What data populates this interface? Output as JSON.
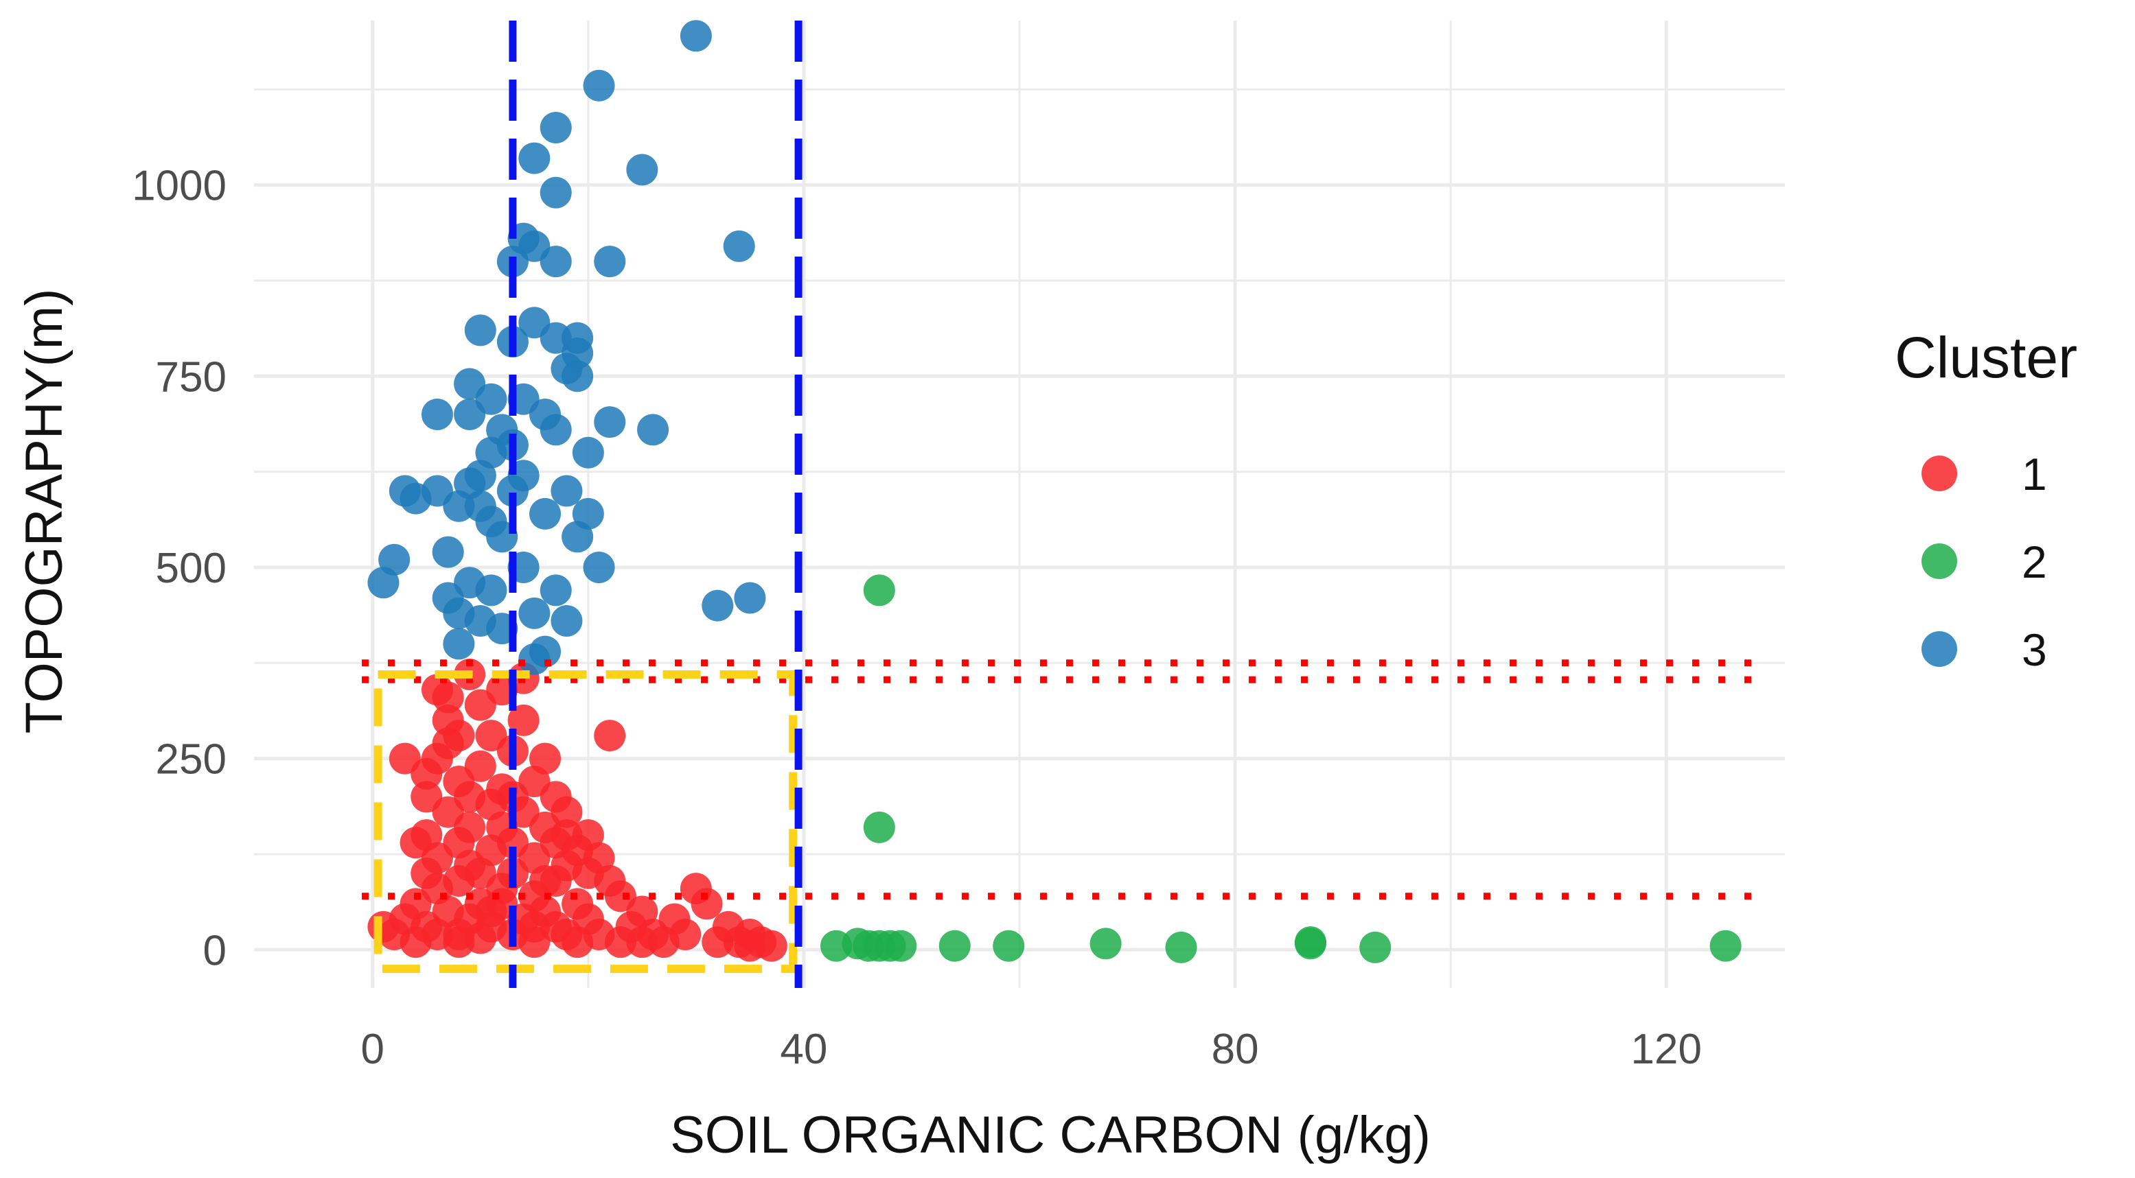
{
  "chart_data": {
    "type": "scatter",
    "xlabel": "SOIL ORGANIC CARBON (g/kg)",
    "ylabel": "TOPOGRAPHY(m)",
    "xlim": [
      -11,
      131
    ],
    "ylim": [
      -50,
      1215
    ],
    "x_ticks": [
      0,
      40,
      80,
      120
    ],
    "y_ticks": [
      0,
      250,
      500,
      750,
      1000
    ],
    "x_tick_labels": [
      "0",
      "40",
      "80",
      "120"
    ],
    "y_tick_labels": [
      "0",
      "250",
      "500",
      "750",
      "1000"
    ],
    "grid": true,
    "legend": {
      "title": "Cluster",
      "placement": "right"
    },
    "reference_lines": {
      "vertical_dashed_blue": [
        13,
        39.5
      ],
      "horizontal_dotted_red": [
        70,
        353,
        375
      ],
      "highlight_rect_yellow_dashed": {
        "x": [
          0.5,
          39
        ],
        "y": [
          -25,
          360
        ]
      }
    },
    "series": [
      {
        "name": "1",
        "color": "#f8262a",
        "points": [
          [
            1,
            30
          ],
          [
            2,
            20
          ],
          [
            3,
            40
          ],
          [
            4,
            10
          ],
          [
            4,
            60
          ],
          [
            5,
            30
          ],
          [
            5,
            100
          ],
          [
            5,
            150
          ],
          [
            5,
            200
          ],
          [
            6,
            250
          ],
          [
            6,
            20
          ],
          [
            6,
            80
          ],
          [
            6,
            120
          ],
          [
            7,
            300
          ],
          [
            7,
            330
          ],
          [
            7,
            50
          ],
          [
            7,
            180
          ],
          [
            8,
            10
          ],
          [
            8,
            90
          ],
          [
            8,
            140
          ],
          [
            8,
            220
          ],
          [
            8,
            280
          ],
          [
            9,
            40
          ],
          [
            9,
            110
          ],
          [
            9,
            160
          ],
          [
            9,
            200
          ],
          [
            10,
            60
          ],
          [
            10,
            240
          ],
          [
            10,
            320
          ],
          [
            10,
            15
          ],
          [
            11,
            130
          ],
          [
            11,
            30
          ],
          [
            11,
            190
          ],
          [
            11,
            280
          ],
          [
            12,
            80
          ],
          [
            12,
            160
          ],
          [
            12,
            210
          ],
          [
            12,
            340
          ],
          [
            13,
            20
          ],
          [
            13,
            100
          ],
          [
            13,
            140
          ],
          [
            13,
            260
          ],
          [
            14,
            40
          ],
          [
            14,
            180
          ],
          [
            14,
            300
          ],
          [
            15,
            10
          ],
          [
            15,
            70
          ],
          [
            15,
            120
          ],
          [
            15,
            220
          ],
          [
            16,
            50
          ],
          [
            16,
            160
          ],
          [
            16,
            250
          ],
          [
            17,
            90
          ],
          [
            17,
            30
          ],
          [
            17,
            200
          ],
          [
            18,
            20
          ],
          [
            18,
            110
          ],
          [
            18,
            150
          ],
          [
            18,
            180
          ],
          [
            19,
            60
          ],
          [
            19,
            10
          ],
          [
            20,
            40
          ],
          [
            20,
            150
          ],
          [
            21,
            120
          ],
          [
            21,
            20
          ],
          [
            22,
            280
          ],
          [
            22,
            90
          ],
          [
            23,
            10
          ],
          [
            23,
            70
          ],
          [
            24,
            30
          ],
          [
            25,
            50
          ],
          [
            25,
            10
          ],
          [
            26,
            20
          ],
          [
            27,
            10
          ],
          [
            28,
            40
          ],
          [
            29,
            20
          ],
          [
            30,
            80
          ],
          [
            31,
            60
          ],
          [
            32,
            10
          ],
          [
            33,
            30
          ],
          [
            34,
            10
          ],
          [
            35,
            20
          ],
          [
            35,
            5
          ],
          [
            36,
            10
          ],
          [
            37,
            5
          ],
          [
            14,
            355
          ],
          [
            9,
            360
          ],
          [
            6,
            340
          ],
          [
            7,
            270
          ],
          [
            3,
            250
          ],
          [
            4,
            140
          ],
          [
            5,
            230
          ],
          [
            10,
            100
          ],
          [
            12,
            60
          ],
          [
            15,
            30
          ],
          [
            16,
            90
          ],
          [
            19,
            130
          ],
          [
            20,
            100
          ],
          [
            11,
            50
          ],
          [
            8,
            20
          ],
          [
            13,
            200
          ],
          [
            17,
            140
          ]
        ]
      },
      {
        "name": "2",
        "color": "#1fae4b",
        "points": [
          [
            43,
            5
          ],
          [
            45,
            8
          ],
          [
            46,
            5
          ],
          [
            47,
            470
          ],
          [
            47,
            5
          ],
          [
            47,
            160
          ],
          [
            48,
            5
          ],
          [
            49,
            5
          ],
          [
            54,
            5
          ],
          [
            59,
            5
          ],
          [
            68,
            8
          ],
          [
            75,
            3
          ],
          [
            87,
            10
          ],
          [
            87,
            8
          ],
          [
            93,
            3
          ],
          [
            125.5,
            5
          ]
        ]
      },
      {
        "name": "3",
        "color": "#1f7ab8",
        "points": [
          [
            30,
            1195
          ],
          [
            21,
            1130
          ],
          [
            17,
            1075
          ],
          [
            15,
            1035
          ],
          [
            25,
            1020
          ],
          [
            17,
            990
          ],
          [
            14,
            930
          ],
          [
            15,
            920
          ],
          [
            13,
            900
          ],
          [
            17,
            900
          ],
          [
            22,
            900
          ],
          [
            34,
            920
          ],
          [
            10,
            810
          ],
          [
            15,
            820
          ],
          [
            19,
            800
          ],
          [
            17,
            800
          ],
          [
            13,
            795
          ],
          [
            18,
            760
          ],
          [
            9,
            740
          ],
          [
            19,
            750
          ],
          [
            9,
            700
          ],
          [
            6,
            700
          ],
          [
            14,
            720
          ],
          [
            16,
            700
          ],
          [
            20,
            650
          ],
          [
            22,
            690
          ],
          [
            26,
            680
          ],
          [
            11,
            650
          ],
          [
            12,
            680
          ],
          [
            10,
            620
          ],
          [
            8,
            580
          ],
          [
            3,
            600
          ],
          [
            4,
            590
          ],
          [
            6,
            600
          ],
          [
            9,
            610
          ],
          [
            11,
            560
          ],
          [
            13,
            600
          ],
          [
            14,
            620
          ],
          [
            16,
            570
          ],
          [
            18,
            600
          ],
          [
            20,
            570
          ],
          [
            2,
            510
          ],
          [
            1,
            480
          ],
          [
            7,
            520
          ],
          [
            9,
            480
          ],
          [
            11,
            470
          ],
          [
            14,
            500
          ],
          [
            15,
            440
          ],
          [
            17,
            470
          ],
          [
            19,
            540
          ],
          [
            21,
            500
          ],
          [
            8,
            440
          ],
          [
            8,
            400
          ],
          [
            10,
            430
          ],
          [
            12,
            420
          ],
          [
            16,
            390
          ],
          [
            15,
            380
          ],
          [
            18,
            430
          ],
          [
            32,
            450
          ],
          [
            35,
            460
          ],
          [
            13,
            660
          ],
          [
            11,
            720
          ],
          [
            17,
            680
          ],
          [
            19,
            780
          ],
          [
            10,
            580
          ],
          [
            12,
            540
          ],
          [
            7,
            460
          ]
        ]
      }
    ]
  }
}
